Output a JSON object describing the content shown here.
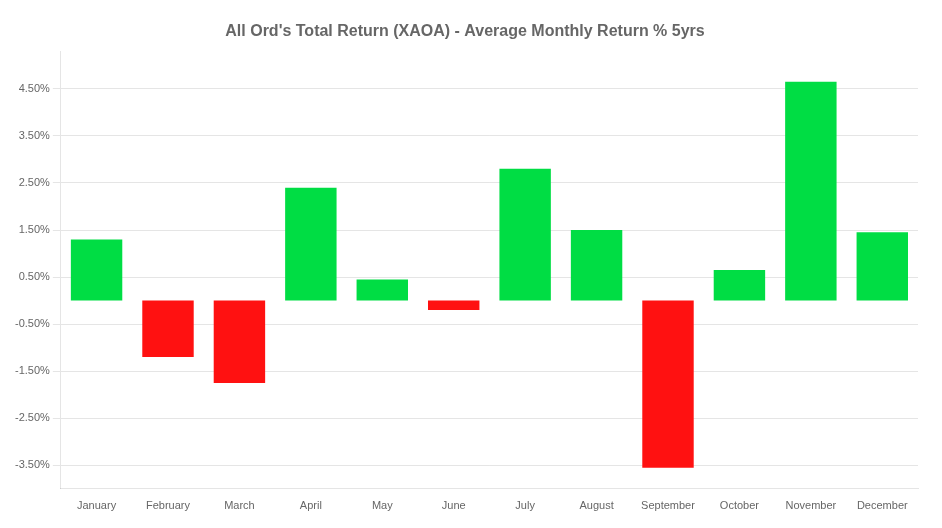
{
  "chart_data": {
    "type": "bar",
    "title": "All Ord's Total Return (XAOA) - Average Monthly Return % 5yrs",
    "categories": [
      "January",
      "February",
      "March",
      "April",
      "May",
      "June",
      "July",
      "August",
      "September",
      "October",
      "November",
      "December"
    ],
    "values": [
      1.3,
      -1.2,
      -1.75,
      2.4,
      0.45,
      -0.2,
      2.8,
      1.5,
      -3.55,
      0.65,
      4.65,
      1.45
    ],
    "colors": [
      "#00dd44",
      "#ff1111",
      "#ff1111",
      "#00dd44",
      "#00dd44",
      "#ff1111",
      "#00dd44",
      "#00dd44",
      "#ff1111",
      "#00dd44",
      "#00dd44",
      "#00dd44"
    ],
    "ylim": [
      -4.0,
      5.3
    ],
    "yticks": [
      {
        "value": -3.5,
        "label": "-3.50%"
      },
      {
        "value": -2.5,
        "label": "-2.50%"
      },
      {
        "value": -1.5,
        "label": "-1.50%"
      },
      {
        "value": -0.5,
        "label": "-0.50%"
      },
      {
        "value": 0.5,
        "label": "0.50%"
      },
      {
        "value": 1.5,
        "label": "1.50%"
      },
      {
        "value": 2.5,
        "label": "2.50%"
      },
      {
        "value": 3.5,
        "label": "3.50%"
      },
      {
        "value": 4.5,
        "label": "4.50%"
      }
    ],
    "grid": true
  }
}
